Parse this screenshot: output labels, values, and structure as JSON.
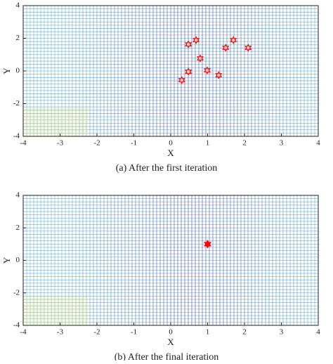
{
  "chart_data": [
    {
      "type": "scatter",
      "caption": "(a) After the first iteration",
      "xlabel": "X",
      "ylabel": "Y",
      "x": [
        0.48,
        0.69,
        1.7,
        1.49,
        2.1,
        0.8,
        0.48,
        0.99,
        1.3,
        0.3
      ],
      "values": [
        1.63,
        1.89,
        1.89,
        1.42,
        1.42,
        0.77,
        -0.04,
        0.04,
        -0.26,
        -0.56
      ],
      "color": "#ff0000",
      "xlim": [
        -4,
        4
      ],
      "ylim": [
        -4,
        4
      ],
      "xticks": [
        -4,
        -3,
        -2,
        -1,
        0,
        1,
        2,
        3,
        4
      ],
      "yticks": [
        -4,
        -2,
        0,
        2,
        4
      ]
    },
    {
      "type": "scatter",
      "caption": "(b) After the final iteration",
      "xlabel": "X",
      "ylabel": "Y",
      "x": [
        1
      ],
      "values": [
        1
      ],
      "color": "#ff0000",
      "xlim": [
        -4,
        4
      ],
      "ylim": [
        -4,
        4
      ],
      "xticks": [
        -4,
        -3,
        -2,
        -1,
        0,
        1,
        2,
        3,
        4
      ],
      "yticks": [
        -4,
        -2,
        0,
        2,
        4
      ]
    }
  ]
}
